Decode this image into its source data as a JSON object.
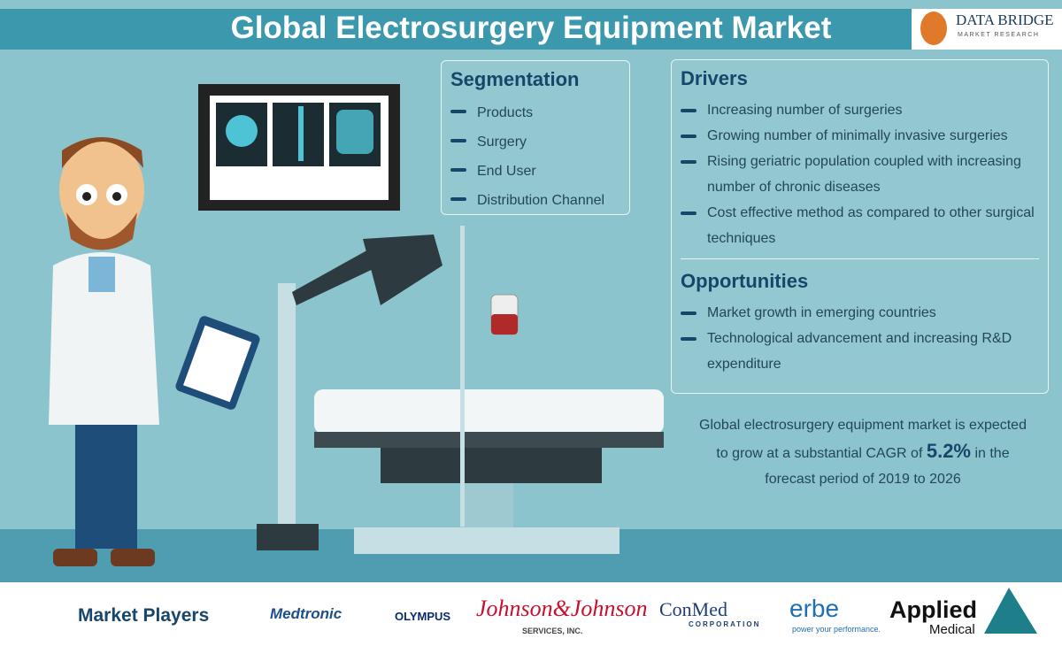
{
  "header": {
    "title": "Global Electrosurgery Equipment Market",
    "logo": {
      "name": "DATA BRIDGE",
      "tagline": "MARKET RESEARCH"
    }
  },
  "segmentation": {
    "heading": "Segmentation",
    "items": [
      "Products",
      "Surgery",
      "End User",
      "Distribution Channel"
    ]
  },
  "drivers": {
    "heading": "Drivers",
    "items": [
      "Increasing number of surgeries",
      "Growing number of minimally invasive surgeries",
      "Rising geriatric population coupled with increasing number of chronic diseases",
      "Cost effective method as compared to other surgical techniques"
    ]
  },
  "opportunities": {
    "heading": "Opportunities",
    "items": [
      "Market growth in emerging countries",
      "Technological advancement and increasing R&D expenditure"
    ]
  },
  "summary": {
    "before": "Global electrosurgery equipment market is expected to grow at a substantial CAGR of",
    "cagr": "5.2%",
    "after": "in the forecast period of 2019 to 2026"
  },
  "footer": {
    "label": "Market Players",
    "players": [
      {
        "name": "Medtronic"
      },
      {
        "name": "OLYMPUS"
      },
      {
        "name": "Johnson&Johnson",
        "sub": "SERVICES, INC."
      },
      {
        "name": "ConMed",
        "sub": "CORPORATION"
      },
      {
        "name": "erbe",
        "sub": "power your performance."
      },
      {
        "name": "Applied",
        "sub": "Medical"
      }
    ]
  }
}
